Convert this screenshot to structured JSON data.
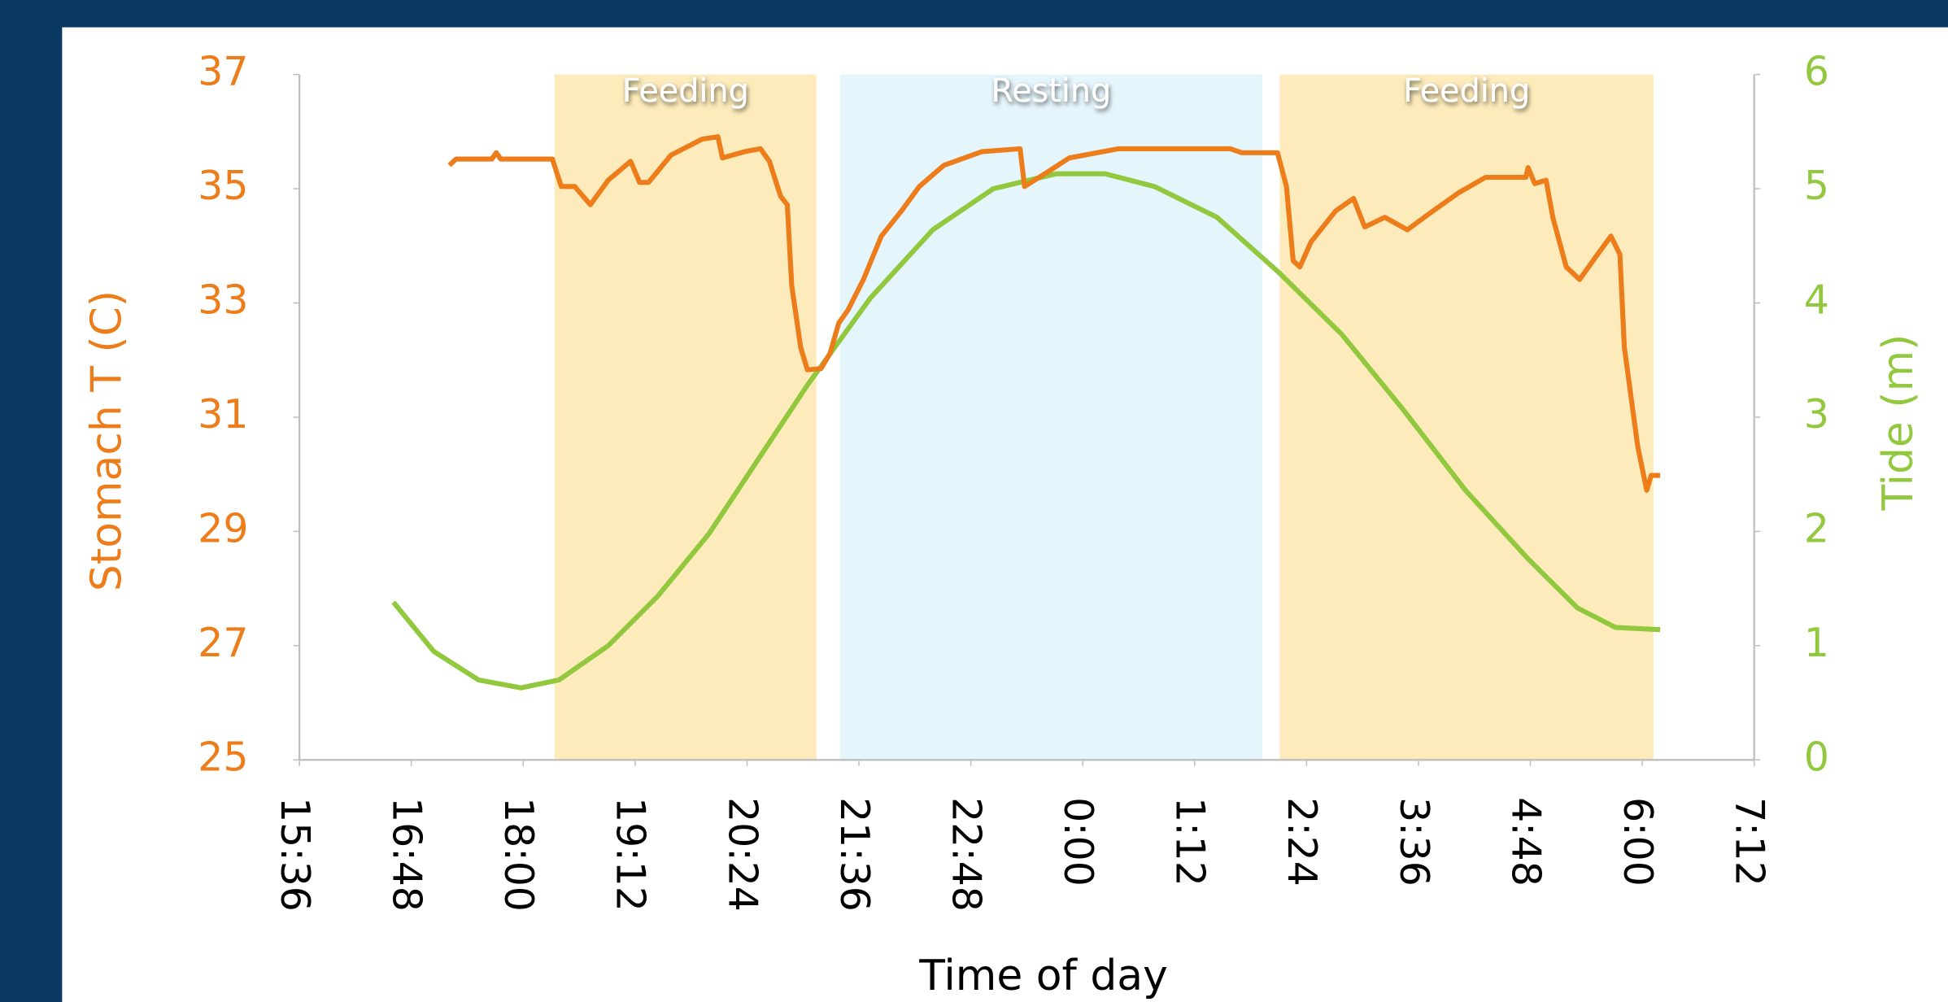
{
  "chart_data": {
    "type": "line",
    "x_label": "Time of day",
    "y_label": "Stomach T (C)",
    "y2_label": "Tide (m)",
    "xlim": [
      0.65,
      1.3
    ],
    "xticks": [
      {
        "value": 0.65,
        "label": "15:36"
      },
      {
        "value": 0.7,
        "label": "16:48"
      },
      {
        "value": 0.75,
        "label": "18:00"
      },
      {
        "value": 0.8,
        "label": "19:12"
      },
      {
        "value": 0.85,
        "label": "20:24"
      },
      {
        "value": 0.9,
        "label": "21:36"
      },
      {
        "value": 0.95,
        "label": "22:48"
      },
      {
        "value": 1.0,
        "label": "0:00"
      },
      {
        "value": 1.05,
        "label": "1:12"
      },
      {
        "value": 1.1,
        "label": "2:24"
      },
      {
        "value": 1.15,
        "label": "3:36"
      },
      {
        "value": 1.2,
        "label": "4:48"
      },
      {
        "value": 1.25,
        "label": "6:00"
      },
      {
        "value": 1.3,
        "label": "7:12"
      }
    ],
    "ylim": [
      25,
      37
    ],
    "yticks": [
      25,
      27,
      29,
      31,
      33,
      35,
      37
    ],
    "y2lim": [
      0,
      6
    ],
    "y2ticks": [
      0,
      1,
      2,
      3,
      4,
      5,
      6
    ],
    "y_color": "#ed7d1a",
    "y2_color": "#92c83e",
    "bands": [
      {
        "label": "Feeding",
        "start": 0.764,
        "end": 0.881,
        "color": "#fdebbb"
      },
      {
        "label": "Resting",
        "start": 0.8915,
        "end": 1.0802,
        "color": "#e5f5fc"
      },
      {
        "label": "Feeding",
        "start": 1.088,
        "end": 1.255,
        "color": "#fdebbb"
      }
    ],
    "series": [
      {
        "color": "#ed7d1a",
        "axis": "y",
        "x": [
          0.717,
          0.72,
          0.736,
          0.738,
          0.74,
          0.763,
          0.767,
          0.773,
          0.78,
          0.788,
          0.798,
          0.802,
          0.806,
          0.816,
          0.83,
          0.837,
          0.839,
          0.849,
          0.856,
          0.86,
          0.865,
          0.868,
          0.87,
          0.874,
          0.877,
          0.883,
          0.887,
          0.891,
          0.895,
          0.902,
          0.91,
          0.919,
          0.927,
          0.938,
          0.955,
          0.972,
          0.974,
          0.983,
          0.994,
          1.016,
          1.066,
          1.071,
          1.087,
          1.091,
          1.094,
          1.097,
          1.102,
          1.113,
          1.121,
          1.126,
          1.135,
          1.145,
          1.155,
          1.168,
          1.18,
          1.198,
          1.199,
          1.202,
          1.207,
          1.21,
          1.216,
          1.222,
          1.23,
          1.236,
          1.24,
          1.242,
          1.245,
          1.248,
          1.252,
          1.254,
          1.258
        ],
        "values": [
          35.41,
          35.52,
          35.52,
          35.63,
          35.52,
          35.52,
          35.04,
          35.04,
          34.72,
          35.15,
          35.48,
          35.11,
          35.11,
          35.59,
          35.87,
          35.91,
          35.54,
          35.65,
          35.7,
          35.48,
          34.87,
          34.72,
          33.3,
          32.22,
          31.83,
          31.85,
          32.11,
          32.65,
          32.87,
          33.41,
          34.17,
          34.61,
          35.04,
          35.41,
          35.65,
          35.7,
          35.04,
          35.26,
          35.54,
          35.7,
          35.7,
          35.63,
          35.63,
          35.04,
          33.74,
          33.63,
          34.07,
          34.61,
          34.83,
          34.33,
          34.5,
          34.28,
          34.57,
          34.93,
          35.2,
          35.2,
          35.37,
          35.09,
          35.15,
          34.5,
          33.63,
          33.41,
          33.85,
          34.17,
          33.85,
          32.22,
          31.35,
          30.48,
          29.72,
          29.98,
          29.98
        ]
      },
      {
        "color": "#92c83e",
        "axis": "y2",
        "x": [
          0.692,
          0.71,
          0.73,
          0.749,
          0.766,
          0.788,
          0.81,
          0.833,
          0.855,
          0.877,
          0.905,
          0.933,
          0.96,
          0.988,
          1.01,
          1.032,
          1.06,
          1.088,
          1.116,
          1.143,
          1.171,
          1.199,
          1.221,
          1.238,
          1.258
        ],
        "values": [
          1.38,
          0.95,
          0.7,
          0.63,
          0.7,
          1.0,
          1.43,
          1.98,
          2.63,
          3.28,
          4.04,
          4.64,
          5.0,
          5.13,
          5.13,
          5.02,
          4.75,
          4.26,
          3.72,
          3.07,
          2.36,
          1.76,
          1.33,
          1.16,
          1.14
        ]
      }
    ]
  }
}
